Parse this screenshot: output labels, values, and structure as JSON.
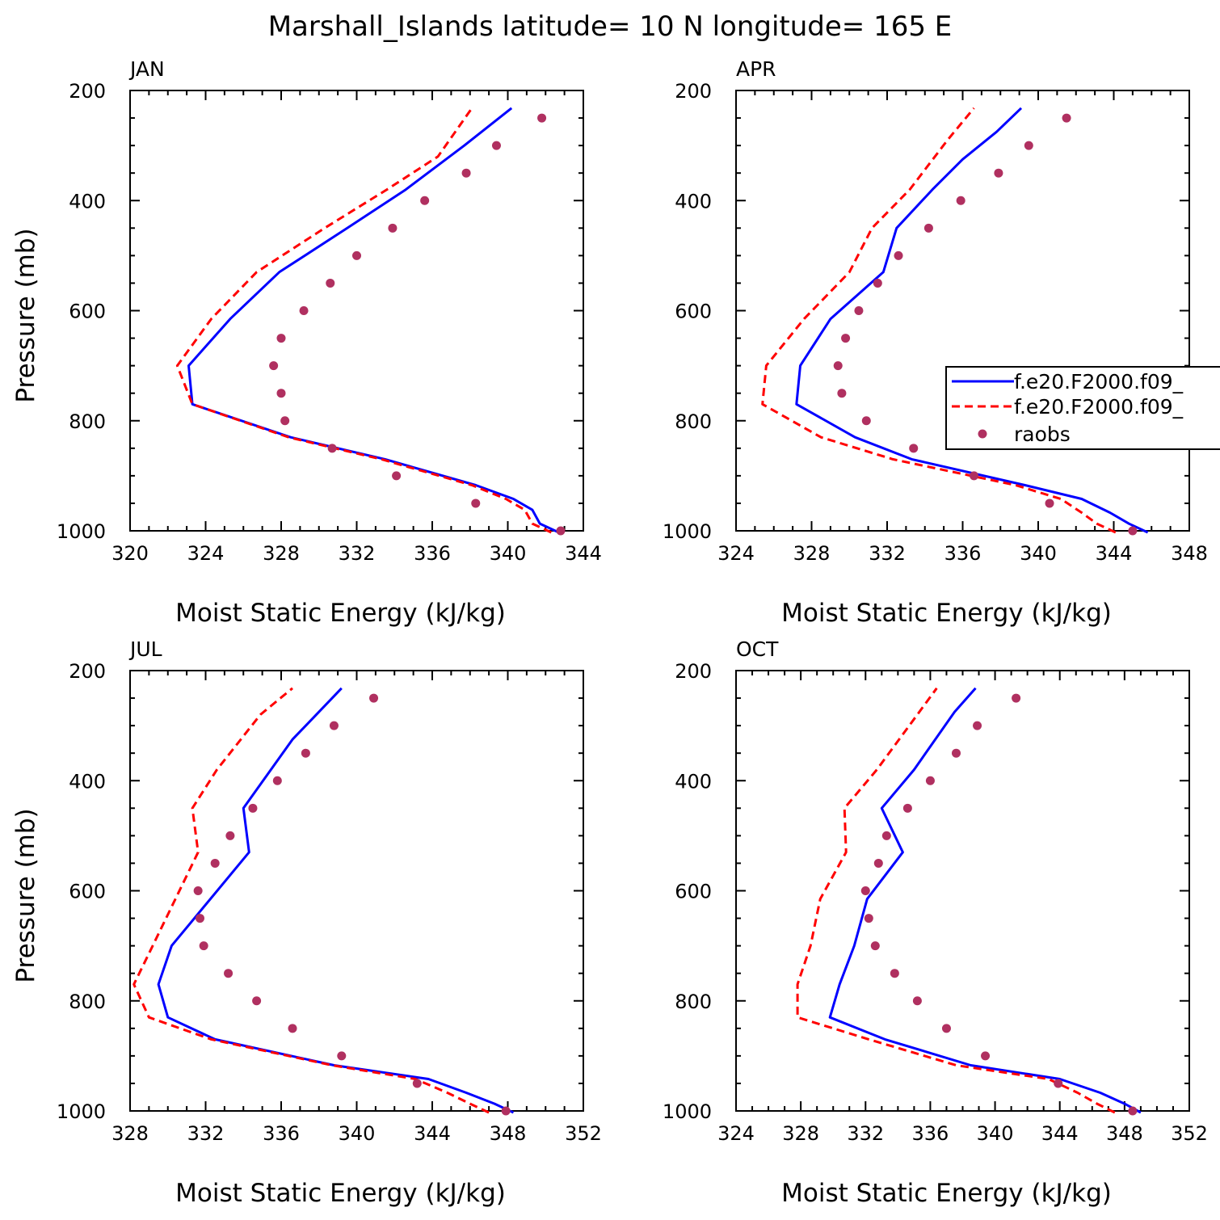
{
  "figure_title": "Marshall_Islands  latitude= 10 N longitude= 165 E",
  "colors": {
    "model_a": "#0000ff",
    "model_b": "#ff0000",
    "obs": "#b03060",
    "axis": "#000000"
  },
  "legend": [
    {
      "label": "f.e20.F2000.f09_",
      "style": "solid",
      "color": "#0000ff"
    },
    {
      "label": "f.e20.F2000.f09_",
      "style": "dashed",
      "color": "#ff0000"
    },
    {
      "label": "raobs",
      "style": "dot",
      "color": "#b03060"
    }
  ],
  "chart_data": [
    {
      "type": "line",
      "panel_label": "JAN",
      "xlabel": "Moist Static Energy (kJ/kg)",
      "ylabel": "Pressure (mb)",
      "xlim": [
        320,
        344
      ],
      "ylim": [
        1000,
        200
      ],
      "x_ticks": [
        320,
        324,
        328,
        332,
        336,
        340,
        344
      ],
      "y_ticks": [
        200,
        400,
        600,
        800,
        1000
      ],
      "series": [
        {
          "name": "f.e20.F2000.f09_ (solid)",
          "style": "solid",
          "x": [
            342.7,
            341.7,
            341.3,
            340.3,
            338.3,
            333.5,
            328.5,
            323.3,
            323.1,
            325.3,
            327.9,
            331.5,
            334.6,
            337.7,
            340.2
          ],
          "y": [
            1003,
            987,
            962,
            942,
            917,
            870,
            830,
            770,
            700,
            615,
            530,
            450,
            380,
            300,
            232
          ]
        },
        {
          "name": "f.e20.F2000.f09_ (dashed)",
          "style": "dashed",
          "x": [
            342.3,
            341.3,
            340.9,
            339.9,
            338.1,
            333.3,
            328.4,
            323.3,
            322.5,
            324.3,
            326.7,
            330.3,
            333.6,
            336.3,
            338.1
          ],
          "y": [
            1003,
            987,
            962,
            942,
            917,
            870,
            830,
            770,
            700,
            615,
            530,
            450,
            380,
            320,
            232
          ]
        },
        {
          "name": "raobs",
          "style": "dot",
          "x": [
            342.8,
            338.3,
            334.1,
            330.7,
            328.2,
            328.0,
            327.6,
            328.0,
            329.2,
            330.6,
            332.0,
            333.9,
            335.6,
            337.8,
            339.4,
            341.8
          ],
          "y": [
            1000,
            950,
            900,
            850,
            800,
            750,
            700,
            650,
            600,
            550,
            500,
            450,
            400,
            350,
            300,
            250
          ]
        }
      ]
    },
    {
      "type": "line",
      "panel_label": "APR",
      "xlabel": "Moist Static Energy (kJ/kg)",
      "ylabel": "",
      "xlim": [
        324,
        348
      ],
      "ylim": [
        1000,
        200
      ],
      "x_ticks": [
        324,
        328,
        332,
        336,
        340,
        344,
        348
      ],
      "y_ticks": [
        200,
        400,
        600,
        800,
        1000
      ],
      "series": [
        {
          "name": "f.e20.F2000.f09_ (solid)",
          "style": "solid",
          "x": [
            345.8,
            344.8,
            343.8,
            342.3,
            339.3,
            333.3,
            330.3,
            327.2,
            327.4,
            329.0,
            331.8,
            332.5,
            334.4,
            336.0,
            337.8,
            339.1
          ],
          "y": [
            1003,
            987,
            967,
            942,
            917,
            870,
            830,
            770,
            700,
            615,
            530,
            450,
            380,
            325,
            275,
            232
          ]
        },
        {
          "name": "f.e20.F2000.f09_ (dashed)",
          "style": "dashed",
          "x": [
            344.1,
            343.1,
            342.3,
            341.2,
            338.8,
            332.3,
            328.5,
            325.4,
            325.6,
            327.6,
            330.0,
            331.2,
            333.2,
            335.2,
            336.6
          ],
          "y": [
            1003,
            987,
            967,
            942,
            917,
            870,
            830,
            770,
            700,
            615,
            530,
            450,
            380,
            290,
            232
          ]
        },
        {
          "name": "raobs",
          "style": "dot",
          "x": [
            345.0,
            340.6,
            336.6,
            333.4,
            330.9,
            329.6,
            329.4,
            329.8,
            330.5,
            331.5,
            332.6,
            334.2,
            335.9,
            337.9,
            339.5,
            341.5
          ],
          "y": [
            1000,
            950,
            900,
            850,
            800,
            750,
            700,
            650,
            600,
            550,
            500,
            450,
            400,
            350,
            300,
            250
          ]
        }
      ]
    },
    {
      "type": "line",
      "panel_label": "JUL",
      "xlabel": "Moist Static Energy (kJ/kg)",
      "ylabel": "Pressure (mb)",
      "xlim": [
        328,
        352
      ],
      "ylim": [
        1000,
        200
      ],
      "x_ticks": [
        328,
        332,
        336,
        340,
        344,
        348,
        352
      ],
      "y_ticks": [
        200,
        400,
        600,
        800,
        1000
      ],
      "series": [
        {
          "name": "f.e20.F2000.f09_ (solid)",
          "style": "solid",
          "x": [
            348.3,
            347.3,
            345.8,
            343.8,
            338.8,
            332.5,
            330.0,
            329.5,
            330.2,
            334.3,
            334.0,
            336.6,
            338.0,
            339.2
          ],
          "y": [
            1003,
            987,
            967,
            942,
            917,
            870,
            830,
            770,
            700,
            530,
            450,
            325,
            275,
            232
          ]
        },
        {
          "name": "f.e20.F2000.f09_ (dashed)",
          "style": "dashed",
          "x": [
            347.0,
            346.0,
            344.8,
            343.1,
            338.7,
            332.3,
            329.0,
            328.2,
            329.2,
            331.6,
            331.3,
            332.6,
            334.9,
            336.6
          ],
          "y": [
            1003,
            987,
            967,
            942,
            917,
            870,
            830,
            770,
            700,
            530,
            450,
            380,
            280,
            232
          ]
        },
        {
          "name": "raobs",
          "style": "dot",
          "x": [
            347.9,
            343.2,
            339.2,
            336.6,
            334.7,
            333.2,
            331.9,
            331.7,
            331.6,
            332.5,
            333.3,
            334.5,
            335.8,
            337.3,
            338.8,
            340.9
          ],
          "y": [
            1000,
            950,
            900,
            850,
            800,
            750,
            700,
            650,
            600,
            550,
            500,
            450,
            400,
            350,
            300,
            250
          ]
        }
      ]
    },
    {
      "type": "line",
      "panel_label": "OCT",
      "xlabel": "Moist Static Energy (kJ/kg)",
      "ylabel": "",
      "xlim": [
        324,
        352
      ],
      "ylim": [
        1000,
        200
      ],
      "x_ticks": [
        324,
        328,
        332,
        336,
        340,
        344,
        348,
        352
      ],
      "y_ticks": [
        200,
        400,
        600,
        800,
        1000
      ],
      "series": [
        {
          "name": "f.e20.F2000.f09_ (solid)",
          "style": "solid",
          "x": [
            349.0,
            348.0,
            346.5,
            344.0,
            338.5,
            333.2,
            329.8,
            330.4,
            331.3,
            332.1,
            334.3,
            333.0,
            335.0,
            337.5,
            338.8
          ],
          "y": [
            1003,
            987,
            967,
            942,
            917,
            870,
            830,
            770,
            700,
            615,
            530,
            450,
            380,
            275,
            232
          ]
        },
        {
          "name": "f.e20.F2000.f09_ (dashed)",
          "style": "dashed",
          "x": [
            347.4,
            346.3,
            345.1,
            343.3,
            337.6,
            332.2,
            327.8,
            327.8,
            328.6,
            329.2,
            330.8,
            330.7,
            332.7,
            335.2,
            336.4
          ],
          "y": [
            1003,
            987,
            967,
            942,
            917,
            870,
            830,
            770,
            700,
            615,
            530,
            450,
            380,
            280,
            232
          ]
        },
        {
          "name": "raobs",
          "style": "dot",
          "x": [
            348.5,
            343.9,
            339.4,
            337.0,
            335.2,
            333.8,
            332.6,
            332.2,
            332.0,
            332.8,
            333.3,
            334.6,
            336.0,
            337.6,
            338.9,
            341.3
          ],
          "y": [
            1000,
            950,
            900,
            850,
            800,
            750,
            700,
            650,
            600,
            550,
            500,
            450,
            400,
            350,
            300,
            250
          ]
        }
      ]
    }
  ]
}
